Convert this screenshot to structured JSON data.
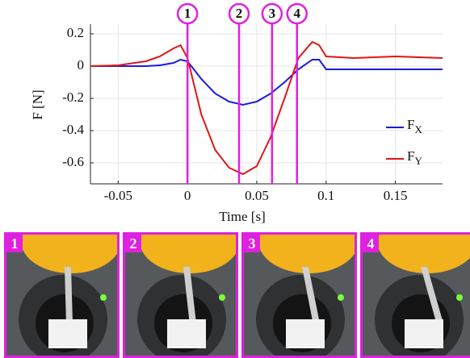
{
  "chart_data": {
    "type": "line",
    "x": [
      -0.07,
      -0.05,
      -0.03,
      -0.02,
      -0.01,
      -0.005,
      0,
      0.01,
      0.02,
      0.03,
      0.04,
      0.05,
      0.06,
      0.07,
      0.08,
      0.09,
      0.095,
      0.1,
      0.12,
      0.15,
      0.184
    ],
    "series": [
      {
        "name": "FX",
        "color": "#1a1ae6",
        "values": [
          0,
          0,
          0,
          0.005,
          0.02,
          0.04,
          0.03,
          -0.08,
          -0.17,
          -0.22,
          -0.24,
          -0.22,
          -0.17,
          -0.1,
          -0.02,
          0.04,
          0.04,
          -0.02,
          -0.02,
          -0.02,
          -0.02
        ]
      },
      {
        "name": "FY",
        "color": "#e01515",
        "values": [
          0,
          0.005,
          0.03,
          0.06,
          0.11,
          0.13,
          0.05,
          -0.3,
          -0.52,
          -0.63,
          -0.67,
          -0.62,
          -0.44,
          -0.2,
          0.05,
          0.15,
          0.13,
          0.06,
          0.05,
          0.06,
          0.05
        ]
      }
    ],
    "xlabel": "Time [s]",
    "ylabel": "F [N]",
    "xlim": [
      -0.07,
      0.184
    ],
    "ylim": [
      -0.73,
      0.26
    ],
    "xticks": [
      -0.05,
      0,
      0.05,
      0.1,
      0.15
    ],
    "yticks": [
      -0.6,
      -0.4,
      -0.2,
      0,
      0.2
    ],
    "grid": true,
    "markers": [
      {
        "x": 0,
        "label": "1"
      },
      {
        "x": 0.0372,
        "label": "2"
      },
      {
        "x": 0.061,
        "label": "3"
      },
      {
        "x": 0.079,
        "label": "4"
      }
    ],
    "marker_color": "#e020e0"
  },
  "photos": [
    {
      "label": "1"
    },
    {
      "label": "2"
    },
    {
      "label": "3"
    },
    {
      "label": "4"
    }
  ]
}
